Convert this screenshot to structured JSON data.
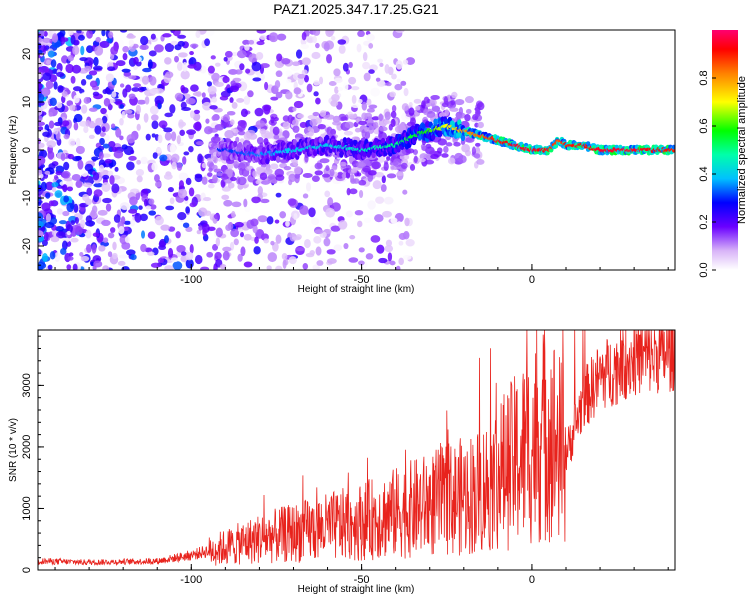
{
  "chart_data": [
    {
      "type": "heatmap",
      "title": "PAZ1.2025.347.17.25.G21",
      "xlabel": "Height of straight line (km)",
      "ylabel": "Frequency (Hz)",
      "xlim": [
        -145,
        42
      ],
      "ylim": [
        -25,
        25
      ],
      "xticks": [
        -100,
        -50,
        0
      ],
      "xtick_labels": [
        "-100",
        "-50",
        "0"
      ],
      "yticks": [
        -20,
        -10,
        0,
        10,
        20
      ],
      "ytick_labels": [
        "-20",
        "-10",
        "0",
        "10",
        "20"
      ],
      "colorbar": {
        "label": "Normalized spectral amplitude",
        "range": [
          0,
          1
        ],
        "ticks": [
          0,
          0.2,
          0.4,
          0.6,
          0.8
        ],
        "tick_labels": [
          "0.0",
          "0.2",
          "0.4",
          "0.6",
          "0.8"
        ]
      },
      "ridge": {
        "description_points_x": [
          -90,
          -80,
          -70,
          -60,
          -50,
          -40,
          -35,
          -30,
          -25,
          -20,
          -15,
          -10,
          -5,
          0,
          5,
          8,
          10,
          15,
          20,
          30,
          42
        ],
        "frequency_hz": [
          0,
          -1,
          0,
          1,
          0,
          1,
          3,
          4,
          5,
          4,
          3,
          2,
          1,
          0,
          0,
          2,
          1,
          1,
          0,
          0,
          0
        ],
        "amplitude": [
          0.3,
          0.35,
          0.4,
          0.4,
          0.45,
          0.5,
          0.55,
          0.6,
          0.7,
          0.8,
          0.85,
          0.9,
          0.95,
          0.95,
          0.9,
          0.85,
          0.9,
          0.92,
          0.95,
          0.95,
          0.9
        ]
      }
    },
    {
      "type": "line",
      "title": "",
      "xlabel": "Height of straight line (km)",
      "ylabel": "SNR (10 * v/v)",
      "xlim": [
        -145,
        42
      ],
      "ylim": [
        0,
        3900
      ],
      "xticks": [
        -100,
        -50,
        0
      ],
      "xtick_labels": [
        "-100",
        "-50",
        "0"
      ],
      "yticks": [
        0,
        1000,
        2000,
        3000
      ],
      "ytick_labels": [
        "0",
        "1000",
        "2000",
        "3000"
      ],
      "series": [
        {
          "name": "SNR",
          "color": "#e8231d",
          "x": [
            -145,
            -130,
            -110,
            -100,
            -90,
            -80,
            -70,
            -60,
            -50,
            -40,
            -30,
            -20,
            -15,
            -10,
            -5,
            0,
            5,
            10,
            15,
            20,
            30,
            42
          ],
          "y": [
            150,
            130,
            150,
            250,
            400,
            550,
            650,
            750,
            850,
            1000,
            1150,
            1300,
            1400,
            1650,
            1900,
            2200,
            2500,
            1900,
            2800,
            3200,
            3500,
            3600
          ]
        }
      ]
    }
  ]
}
